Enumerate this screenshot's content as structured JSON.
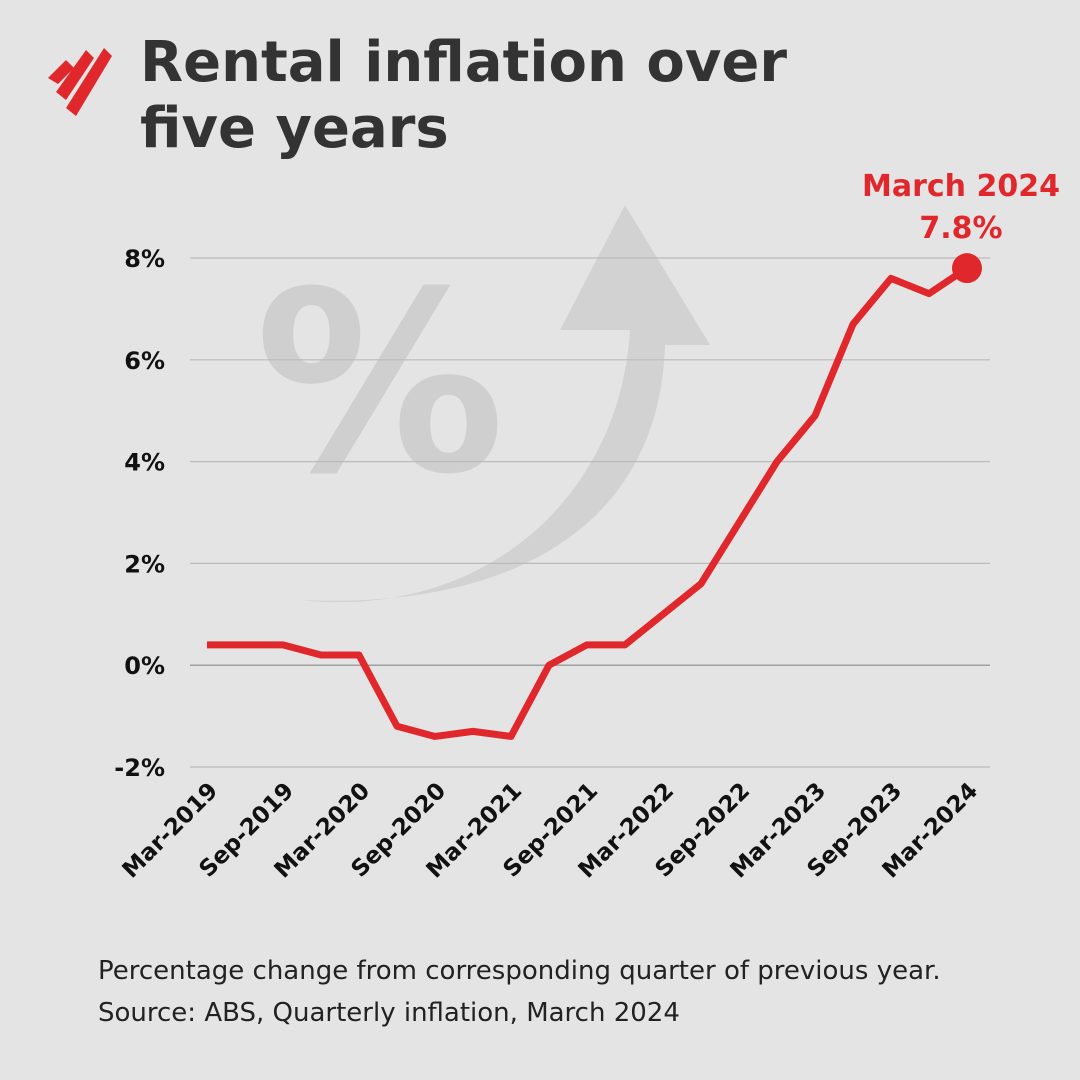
{
  "chart_data": {
    "type": "line",
    "title": "Rental inflation over five years",
    "footnote": "Percentage change from corresponding quarter of previous year.  Source: ABS, Quarterly inflation, March 2024",
    "annotation": "March 2024",
    "categories": [
      "Mar-2019",
      null,
      "Sep-2019",
      null,
      "Mar-2020",
      null,
      "Sep-2020",
      null,
      "Mar-2021",
      null,
      "Sep-2021",
      null,
      "Mar-2022",
      null,
      "Sep-2022",
      null,
      "Mar-2023",
      null,
      "Sep-2023",
      null,
      "Mar-2024"
    ],
    "series": [
      {
        "name": "Rental inflation",
        "color": "#e0282c",
        "values": [
          0.4,
          0.4,
          0.4,
          0.2,
          0.2,
          -1.2,
          -1.4,
          -1.3,
          -1.4,
          0.0,
          0.4,
          0.4,
          1.0,
          1.6,
          2.8,
          4.0,
          4.9,
          6.7,
          7.6,
          7.3,
          7.8
        ],
        "value_labels": [
          null,
          null,
          null,
          null,
          null,
          null,
          null,
          null,
          null,
          null,
          null,
          null,
          null,
          null,
          null,
          null,
          null,
          null,
          null,
          null,
          "7.8%"
        ]
      }
    ],
    "ylim": [
      -2,
      8
    ],
    "yticks": [
      {
        "value": -2,
        "label": "-2%"
      },
      {
        "value": 0,
        "label": "0%"
      },
      {
        "value": 2,
        "label": "2%"
      },
      {
        "value": 4,
        "label": "4%"
      },
      {
        "value": 6,
        "label": "6%"
      },
      {
        "value": 8,
        "label": "8%"
      }
    ],
    "grid": true
  }
}
